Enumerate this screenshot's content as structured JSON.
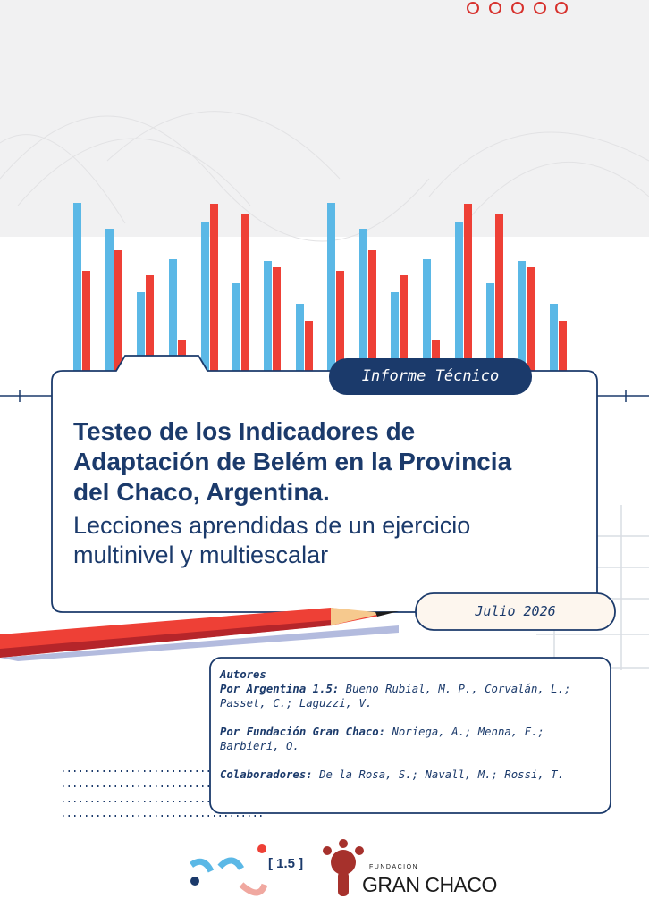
{
  "badge": "Informe Técnico",
  "title": "Testeo de los Indicadores de Adaptación de Belém en la Provincia del Chaco, Argentina.",
  "subtitle": "Lecciones aprendidas de un ejercicio multinivel y multiescalar",
  "date": "Julio 2026",
  "authors": {
    "heading": "Autores",
    "groups": [
      {
        "label": "Por Argentina 1.5:",
        "names": "Bueno Rubial, M. P., Corvalán, L.; Passet, C.; Laguzzi, V."
      },
      {
        "label": "Por Fundación Gran Chaco:",
        "names": "Noriega, A.; Menna, F.; Barbieri, O."
      },
      {
        "label": "Colaboradores:",
        "names": "De la Rosa, S.; Navall, M.; Rossi, T."
      }
    ]
  },
  "logos": {
    "arg": "[ 1.5 ]",
    "fundacion": "FUNDACIÓN",
    "gran_chaco": "GRAN CHACO"
  }
}
